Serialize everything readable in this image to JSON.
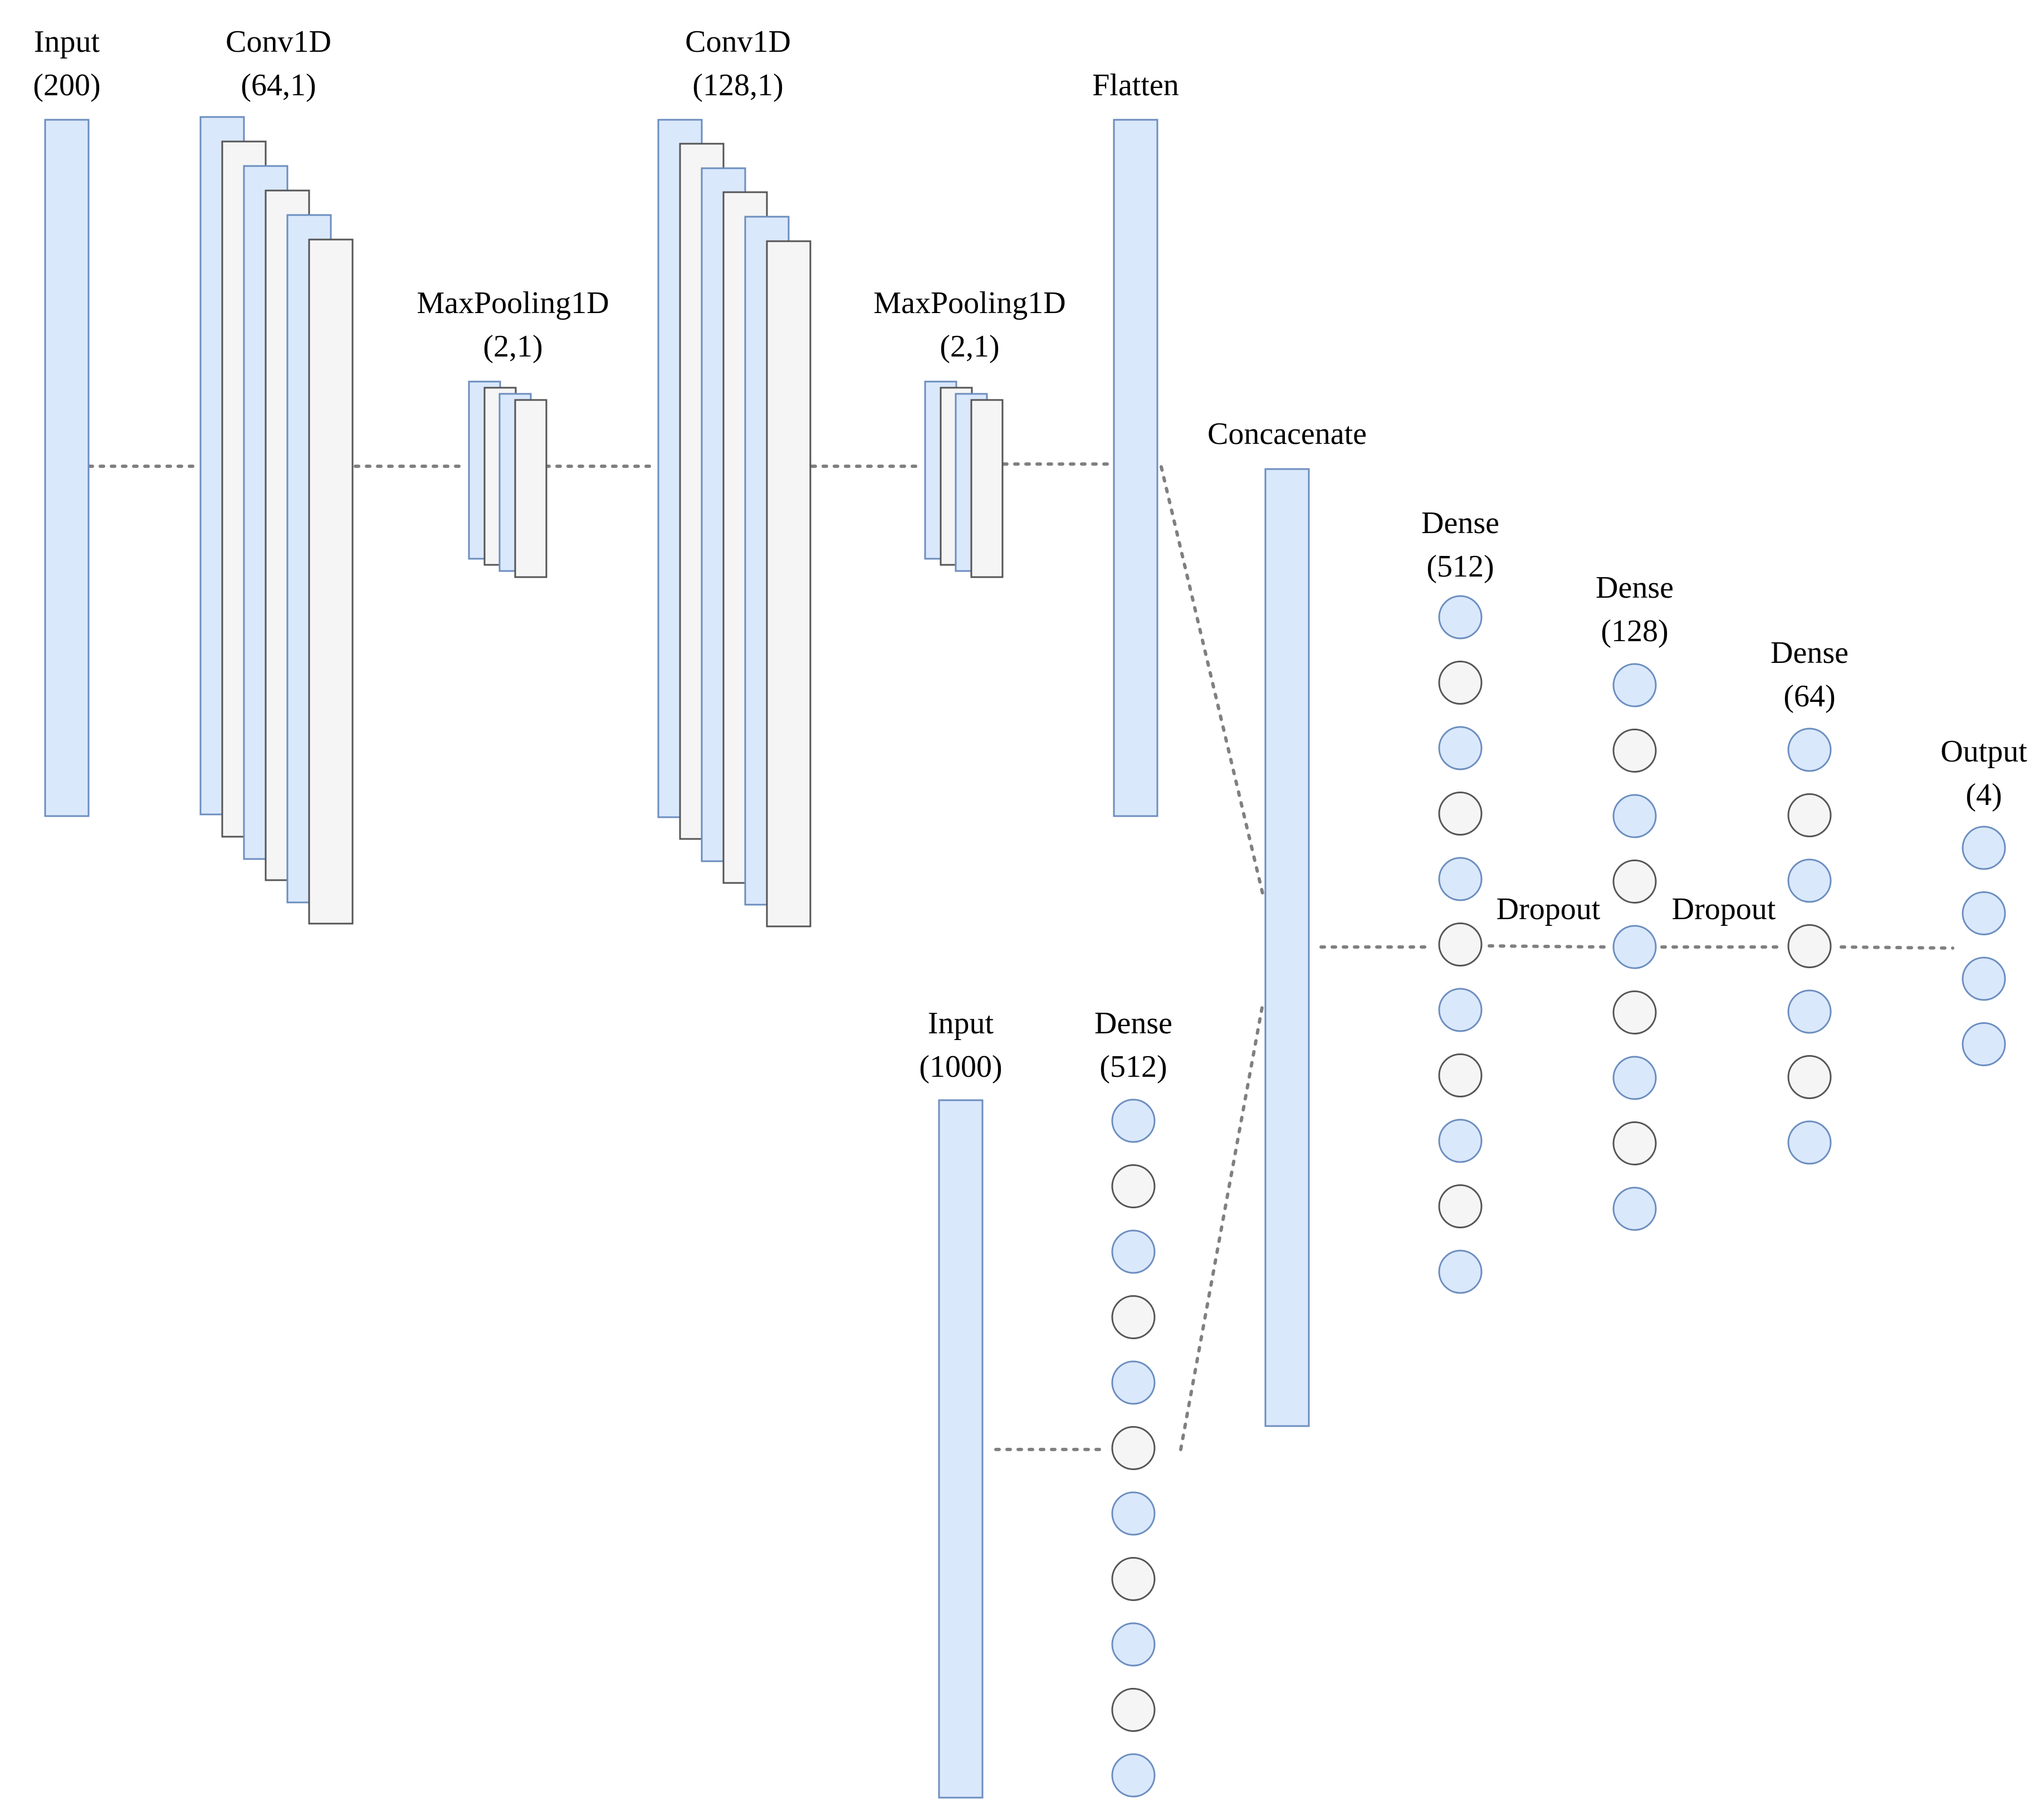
{
  "colors": {
    "blue_fill": "#dae8fc",
    "blue_stroke": "#6c8ebf",
    "grey_fill": "#f5f5f5",
    "grey_stroke": "#555555",
    "connector": "#808080"
  },
  "layers": {
    "input_a": {
      "name": "Input",
      "shape": "(200)"
    },
    "conv1": {
      "name": "Conv1D",
      "shape": "(64,1)"
    },
    "pool1": {
      "name": "MaxPooling1D",
      "shape": "(2,1)"
    },
    "conv2": {
      "name": "Conv1D",
      "shape": "(128,1)"
    },
    "pool2": {
      "name": "MaxPooling1D",
      "shape": "(2,1)"
    },
    "flatten": {
      "name": "Flatten"
    },
    "concat": {
      "name": "Concacenate"
    },
    "input_b": {
      "name": "Input",
      "shape": "(1000)"
    },
    "dense_b": {
      "name": "Dense",
      "shape": "(512)"
    },
    "dense1": {
      "name": "Dense",
      "shape": "(512)"
    },
    "dropout1": {
      "name": "Dropout"
    },
    "dense2": {
      "name": "Dense",
      "shape": "(128)"
    },
    "dropout2": {
      "name": "Dropout"
    },
    "dense3": {
      "name": "Dense",
      "shape": "(64)"
    },
    "output": {
      "name": "Output",
      "shape": "(4)"
    }
  }
}
